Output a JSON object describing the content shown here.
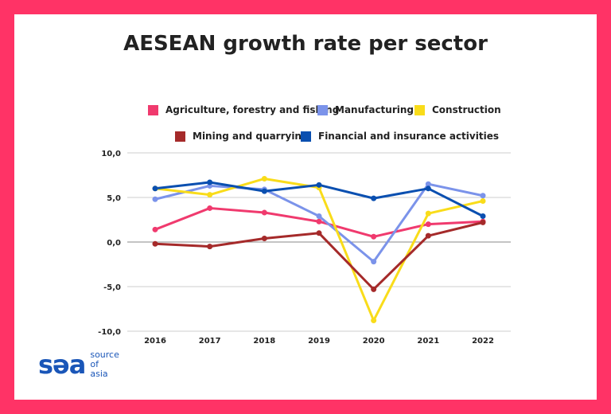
{
  "chart_data": {
    "type": "line",
    "title": "AESEAN growth rate per sector",
    "xlabel": "",
    "ylabel": "",
    "categories": [
      "2016",
      "2017",
      "2018",
      "2019",
      "2020",
      "2021",
      "2022"
    ],
    "ylim": [
      -10,
      10
    ],
    "y_ticks": [
      "10,0",
      "5,0",
      "0,0",
      "-5,0",
      "-10,0"
    ],
    "grid": true,
    "legend_position": "top",
    "series": [
      {
        "name": "Agriculture, forestry and fishing",
        "color": "#f03a6e",
        "values": [
          1.4,
          3.8,
          3.3,
          2.3,
          0.6,
          2.0,
          2.3
        ]
      },
      {
        "name": "Manufacturing",
        "color": "#7b93ea",
        "values": [
          4.8,
          6.3,
          5.9,
          2.9,
          -2.2,
          6.5,
          5.2
        ]
      },
      {
        "name": "Construction",
        "color": "#f9dc1a",
        "values": [
          6.0,
          5.3,
          7.1,
          6.1,
          -8.8,
          3.2,
          4.6
        ]
      },
      {
        "name": "Mining and quarrying",
        "color": "#a52a2a",
        "values": [
          -0.2,
          -0.5,
          0.4,
          1.0,
          -5.3,
          0.7,
          2.2
        ]
      },
      {
        "name": "Financial and insurance activities",
        "color": "#0a4fb0",
        "values": [
          6.0,
          6.7,
          5.7,
          6.4,
          4.9,
          6.0,
          2.9
        ]
      }
    ]
  },
  "brand": {
    "logo_mark": "sǝa",
    "logo_text": [
      "source",
      "of",
      "asia"
    ],
    "frame_color": "#ff3366"
  }
}
